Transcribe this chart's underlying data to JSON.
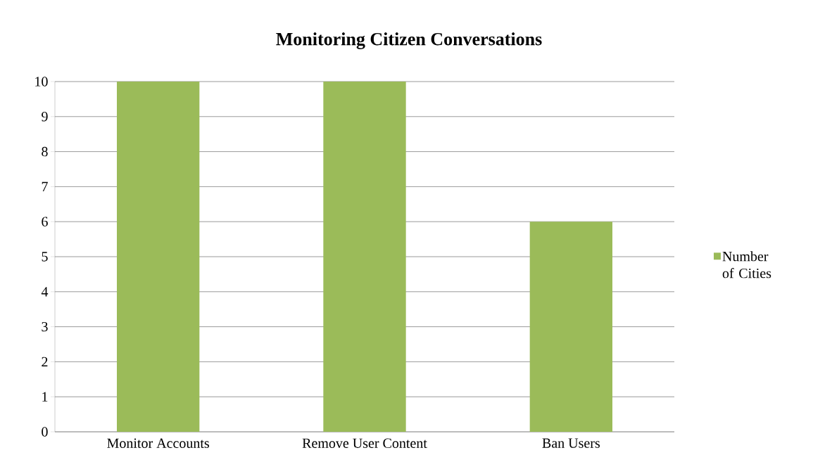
{
  "chart_data": {
    "type": "bar",
    "title": "Monitoring Citizen Conversations",
    "categories": [
      "Monitor Accounts",
      "Remove User Content",
      "Ban Users"
    ],
    "series": [
      {
        "name": "Number of Cities",
        "color": "#9bbb59",
        "values": [
          10,
          10,
          6
        ]
      }
    ],
    "ylim": [
      0,
      10
    ],
    "yticks": [
      0,
      1,
      2,
      3,
      4,
      5,
      6,
      7,
      8,
      9,
      10
    ],
    "grid": "y",
    "legend": "right"
  }
}
